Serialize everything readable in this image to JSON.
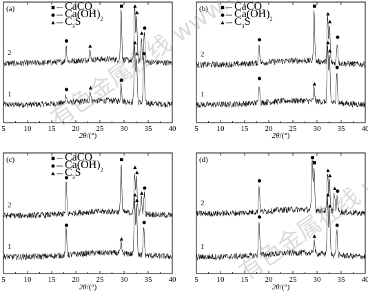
{
  "chart_data": [
    {
      "type": "line",
      "panel": "(a)",
      "xlabel": "2θ/(°)",
      "xlim": [
        5,
        40
      ],
      "x_ticks": [
        "5",
        "10",
        "15",
        "20",
        "25",
        "30",
        "35",
        "40"
      ],
      "legend": [
        "CaCO3",
        "Ca(OH)2",
        "C3S"
      ],
      "legend_placement": "top-center",
      "series": [
        {
          "name": "1",
          "peaks": [
            {
              "x": 18.0,
              "phase": "Ca(OH)2",
              "h": 0.15
            },
            {
              "x": 23.0,
              "phase": "C3S",
              "h": 0.18
            },
            {
              "x": 29.4,
              "phase": "CaCO3",
              "h": 0.32
            },
            {
              "x": 32.2,
              "phase": "C3S",
              "h": 1.0
            },
            {
              "x": 32.6,
              "phase": "C3S",
              "h": 0.8
            },
            {
              "x": 34.1,
              "phase": "Ca(OH)2",
              "h": 0.8
            }
          ]
        },
        {
          "name": "2",
          "peaks": [
            {
              "x": 18.0,
              "phase": "Ca(OH)2",
              "h": 0.3
            },
            {
              "x": 22.9,
              "phase": "C3S",
              "h": 0.2
            },
            {
              "x": 29.4,
              "phase": "CaCO3",
              "h": 1.0
            },
            {
              "x": 32.2,
              "phase": "C3S",
              "h": 1.05
            },
            {
              "x": 32.6,
              "phase": "C3S",
              "h": 0.85
            },
            {
              "x": 33.6,
              "phase": "C3S",
              "h": 0.45
            },
            {
              "x": 34.2,
              "phase": "Ca(OH)2",
              "h": 0.55
            }
          ]
        }
      ]
    },
    {
      "type": "line",
      "panel": "(b)",
      "xlabel": "2θ/(°)",
      "xlim": [
        5,
        40
      ],
      "x_ticks": [
        "5",
        "10",
        "15",
        "20",
        "25",
        "30",
        "35",
        "40"
      ],
      "legend": [
        "CaCO3",
        "Ca(OH)2",
        "C3S"
      ],
      "legend_placement": "top-left",
      "series": [
        {
          "name": "1",
          "peaks": [
            {
              "x": 18.0,
              "phase": "Ca(OH)2",
              "h": 0.35
            },
            {
              "x": 29.4,
              "phase": "C3S",
              "h": 0.25
            },
            {
              "x": 32.2,
              "phase": "C3S",
              "h": 1.0
            },
            {
              "x": 32.6,
              "phase": "C3S",
              "h": 0.85
            },
            {
              "x": 34.1,
              "phase": "Ca(OH)2",
              "h": 0.55
            }
          ]
        },
        {
          "name": "2",
          "peaks": [
            {
              "x": 18.0,
              "phase": "Ca(OH)2",
              "h": 0.35
            },
            {
              "x": 29.4,
              "phase": "CaCO3",
              "h": 1.0
            },
            {
              "x": 32.2,
              "phase": "C3S",
              "h": 0.85
            },
            {
              "x": 32.6,
              "phase": "C3S",
              "h": 0.7
            },
            {
              "x": 34.2,
              "phase": "Ca(OH)2",
              "h": 0.4
            }
          ]
        }
      ]
    },
    {
      "type": "line",
      "panel": "(c)",
      "xlabel": "2θ/(°)",
      "xlim": [
        5,
        40
      ],
      "x_ticks": [
        "5",
        "10",
        "15",
        "20",
        "25",
        "30",
        "35",
        "40"
      ],
      "legend": [
        "CaCO3",
        "Ca(OH)2",
        "C3S"
      ],
      "legend_placement": "top-center",
      "series": [
        {
          "name": "1",
          "peaks": [
            {
              "x": 18.0,
              "phase": "Ca(OH)2",
              "h": 0.45
            },
            {
              "x": 29.4,
              "phase": "C3S",
              "h": 0.2
            },
            {
              "x": 32.2,
              "phase": "C3S",
              "h": 1.0
            },
            {
              "x": 32.6,
              "phase": "C3S",
              "h": 0.9
            },
            {
              "x": 34.1,
              "phase": "Ca(OH)2",
              "h": 0.5
            }
          ]
        },
        {
          "name": "2",
          "peaks": [
            {
              "x": 18.0,
              "phase": "Ca(OH)2",
              "h": 0.6
            },
            {
              "x": 29.4,
              "phase": "CaCO3",
              "h": 0.95
            },
            {
              "x": 32.2,
              "phase": "C3S",
              "h": 0.8
            },
            {
              "x": 32.6,
              "phase": "C3S",
              "h": 0.7
            },
            {
              "x": 33.6,
              "phase": "C3S",
              "h": 0.3
            },
            {
              "x": 34.2,
              "phase": "Ca(OH)2",
              "h": 0.4
            }
          ]
        }
      ]
    },
    {
      "type": "line",
      "panel": "(d)",
      "xlabel": "2θ/(°)",
      "xlim": [
        5,
        40
      ],
      "x_ticks": [
        "5",
        "10",
        "15",
        "20",
        "25",
        "30",
        "35",
        "40"
      ],
      "legend": [],
      "legend_placement": "none",
      "series": [
        {
          "name": "1",
          "peaks": [
            {
              "x": 18.0,
              "phase": "Ca(OH)2",
              "h": 0.6
            },
            {
              "x": 29.4,
              "phase": "C3S",
              "h": 0.25
            },
            {
              "x": 32.2,
              "phase": "C3S",
              "h": 1.0
            },
            {
              "x": 32.6,
              "phase": "C3S",
              "h": 0.8
            },
            {
              "x": 34.1,
              "phase": "Ca(OH)2",
              "h": 0.45
            }
          ]
        },
        {
          "name": "2",
          "peaks": [
            {
              "x": 18.0,
              "phase": "Ca(OH)2",
              "h": 0.5
            },
            {
              "x": 29.0,
              "phase": "CaCO3",
              "h": 0.95
            },
            {
              "x": 29.4,
              "phase": "CaCO3",
              "h": 0.85
            },
            {
              "x": 32.2,
              "phase": "C3S",
              "h": 0.7
            },
            {
              "x": 32.6,
              "phase": "C3S",
              "h": 0.6
            },
            {
              "x": 33.6,
              "phase": "C3S",
              "h": 0.35
            },
            {
              "x": 34.2,
              "phase": "Ca(OH)2",
              "h": 0.3
            }
          ]
        }
      ]
    }
  ],
  "watermark": "有色金属在线 www.cnnmol.com"
}
